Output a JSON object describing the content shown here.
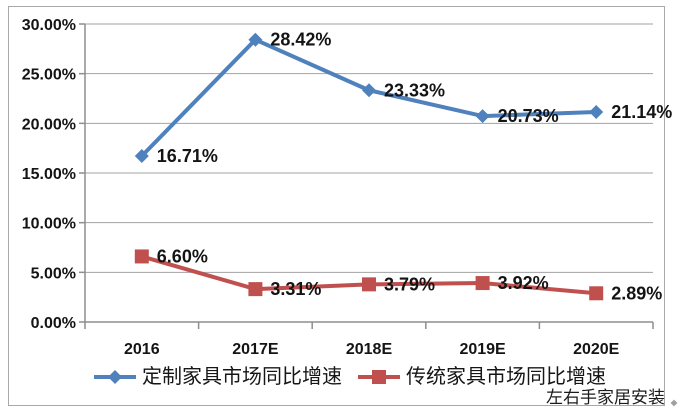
{
  "watermark": "左右手家居安装",
  "chart_data": {
    "type": "line",
    "categories": [
      "2016",
      "2017E",
      "2018E",
      "2019E",
      "2020E"
    ],
    "series": [
      {
        "name": "定制家具市场同比增速",
        "values": [
          16.71,
          28.42,
          23.33,
          20.73,
          21.14
        ],
        "data_labels": [
          "16.71%",
          "28.42%",
          "23.33%",
          "20.73%",
          "21.14%"
        ],
        "color": "#4F81BD",
        "marker": "diamond"
      },
      {
        "name": "传统家具市场同比增速",
        "values": [
          6.6,
          3.31,
          3.79,
          3.92,
          2.89
        ],
        "data_labels": [
          "6.60%",
          "3.31%",
          "3.79%",
          "3.92%",
          "2.89%"
        ],
        "color": "#C0504D",
        "marker": "square"
      }
    ],
    "yticks": [
      "0.00%",
      "5.00%",
      "10.00%",
      "15.00%",
      "20.00%",
      "25.00%",
      "30.00%"
    ],
    "ylim": [
      0,
      30
    ],
    "ytick_step": 5,
    "xlabel": "",
    "ylabel": "",
    "title": "",
    "grid": true,
    "legend_position": "bottom",
    "axis_color": "#8e8e8e",
    "grid_color": "#a3a3a3",
    "label_color": "#141414"
  }
}
